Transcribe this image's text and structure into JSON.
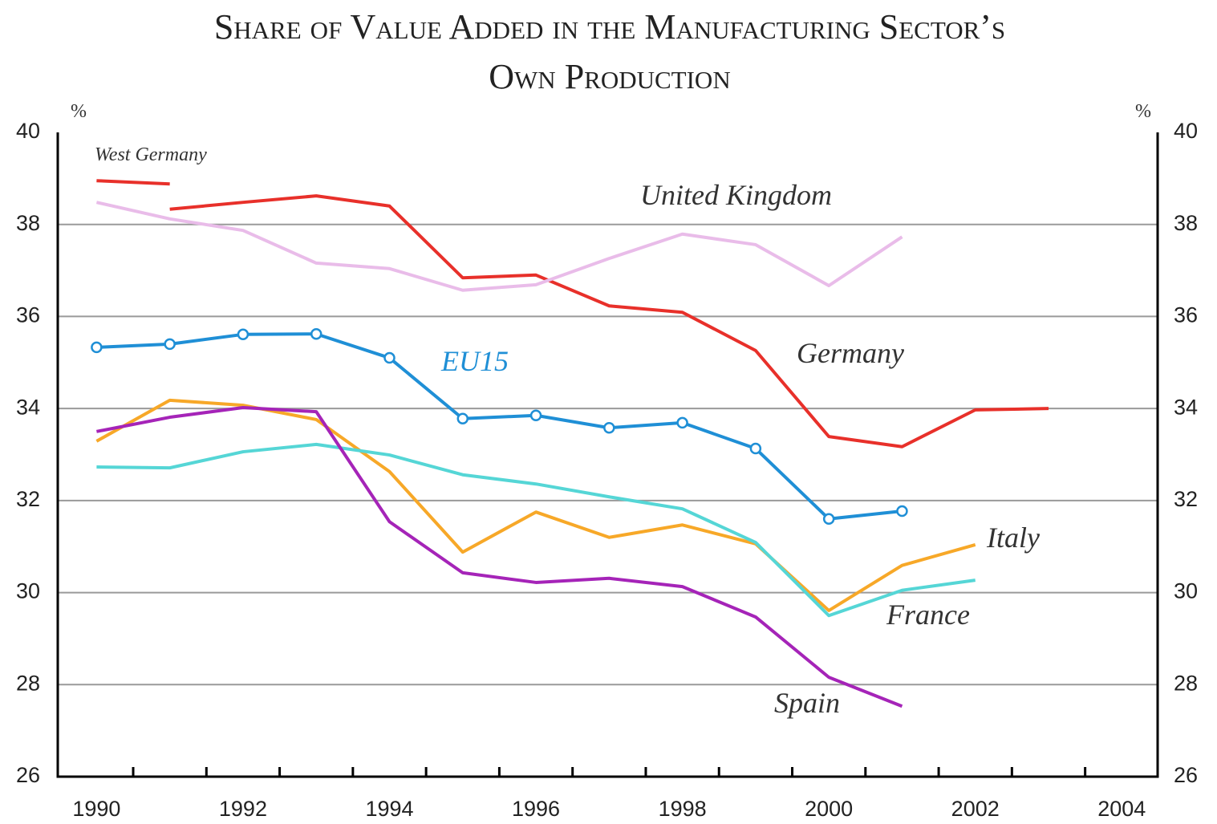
{
  "chart_data": {
    "type": "line",
    "title": [
      "Share of Value Added in the Manufacturing Sector’s",
      "Own Production"
    ],
    "ylabel": "%",
    "y2label": "%",
    "x": [
      1990,
      1991,
      1992,
      1993,
      1994,
      1995,
      1996,
      1997,
      1998,
      1999,
      2000,
      2001,
      2002,
      2003
    ],
    "xlim": [
      1989.47,
      2004.49
    ],
    "xticks": [
      1990,
      1992,
      1994,
      1996,
      1998,
      2000,
      2002,
      2004
    ],
    "xminor_ticks": [
      1990.5,
      1991.5,
      1992.5,
      1993.5,
      1994.5,
      1995.5,
      1996.5,
      1997.5,
      1998.5,
      1999.5,
      2000.5,
      2001.5,
      2002.5,
      2003.5
    ],
    "ylim": [
      26,
      40
    ],
    "yticks": [
      26,
      28,
      30,
      32,
      34,
      36,
      38,
      40
    ],
    "y2lim": [
      26,
      40
    ],
    "y2ticks": [
      26,
      28,
      30,
      32,
      34,
      36,
      38,
      40
    ],
    "grid": true,
    "series": [
      {
        "name": "West Germany",
        "color": "#e8302a",
        "values": [
          38.95,
          38.88,
          null,
          null,
          null,
          null,
          null,
          null,
          null,
          null,
          null,
          null,
          null,
          null
        ]
      },
      {
        "name": "Germany",
        "color": "#e8302a",
        "values": [
          null,
          38.33,
          38.48,
          38.62,
          38.4,
          36.84,
          36.9,
          36.23,
          36.09,
          35.26,
          33.39,
          33.17,
          33.97,
          34.0
        ]
      },
      {
        "name": "United Kingdom",
        "color": "#e9bce9",
        "values": [
          38.48,
          38.12,
          37.87,
          37.16,
          37.04,
          36.57,
          36.69,
          37.26,
          37.79,
          37.56,
          36.67,
          37.73,
          null,
          null
        ]
      },
      {
        "name": "EU15",
        "color": "#1f8fd6",
        "marker": "circle",
        "values": [
          35.33,
          35.4,
          35.61,
          35.62,
          35.1,
          33.78,
          33.85,
          33.58,
          33.69,
          33.13,
          31.6,
          31.77,
          null,
          null
        ]
      },
      {
        "name": "Italy",
        "color": "#f7a828",
        "values": [
          33.29,
          34.18,
          34.07,
          33.76,
          32.63,
          30.88,
          31.75,
          31.2,
          31.47,
          31.06,
          29.61,
          30.59,
          31.04,
          null
        ]
      },
      {
        "name": "France",
        "color": "#55d6d6",
        "values": [
          32.73,
          32.71,
          33.06,
          33.22,
          32.99,
          32.56,
          32.36,
          32.08,
          31.82,
          31.09,
          29.5,
          30.05,
          30.27,
          null
        ]
      },
      {
        "name": "Spain",
        "color": "#a524b8",
        "values": [
          33.5,
          33.81,
          34.02,
          33.93,
          31.54,
          30.43,
          30.22,
          30.31,
          30.13,
          29.47,
          28.16,
          27.53,
          null,
          null
        ]
      }
    ]
  }
}
